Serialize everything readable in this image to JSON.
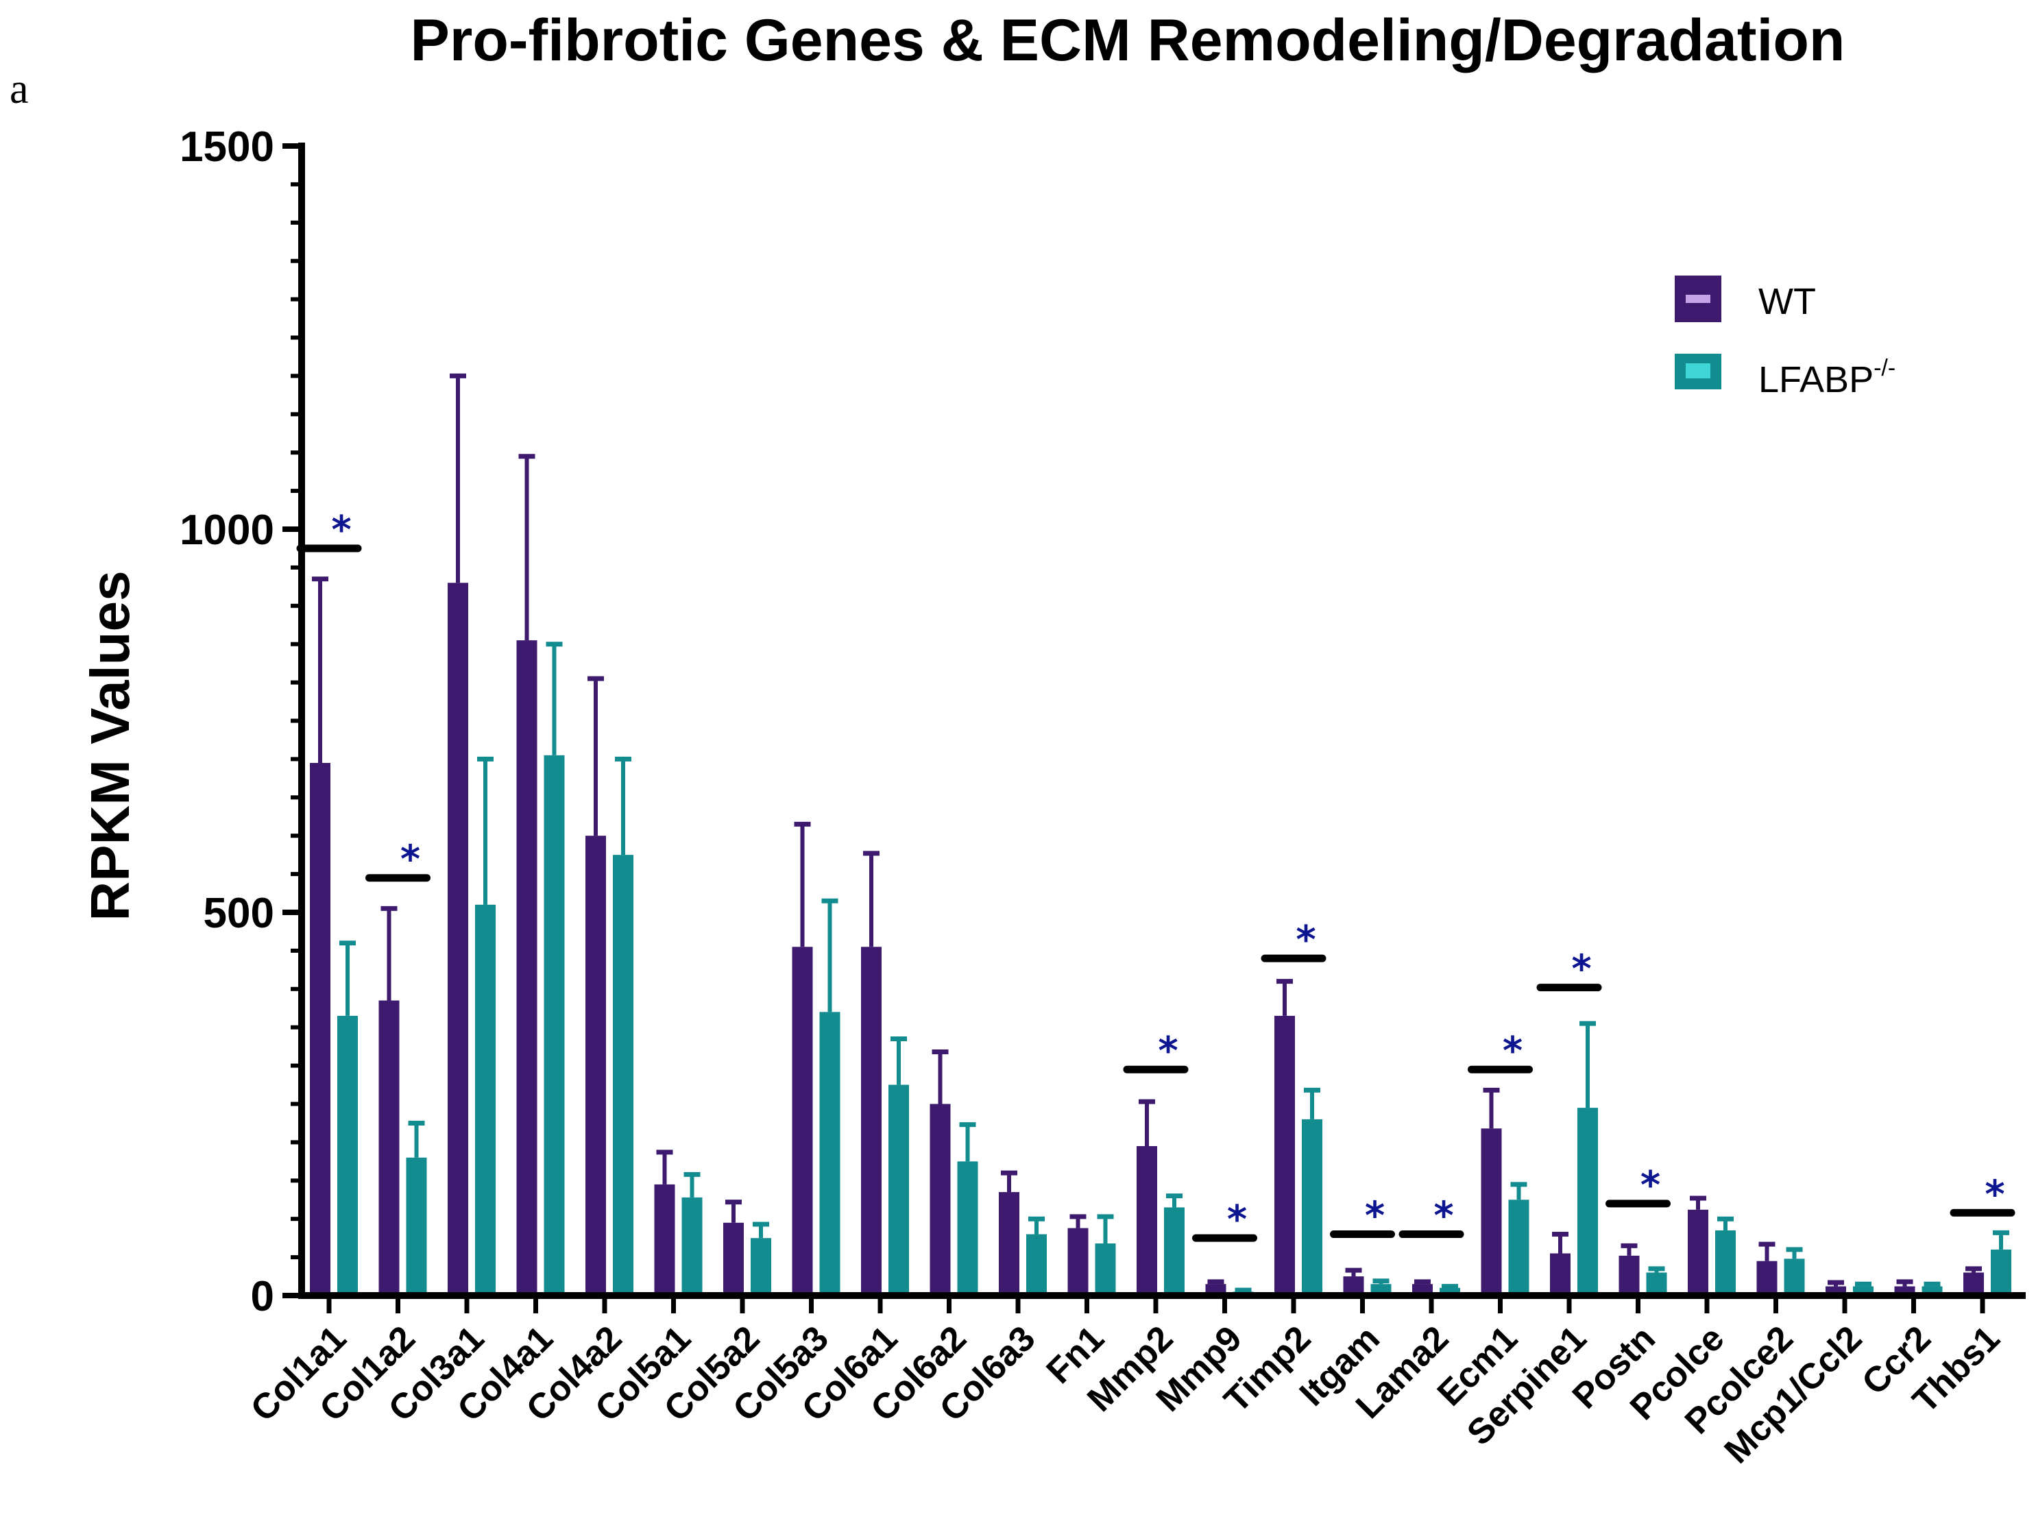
{
  "panel_label": "a",
  "colors": {
    "wt": "#3d1a6e",
    "ko": "#138c90",
    "wt_legend_inner": "#c5a3e6",
    "ko_legend_inner": "#3fd6d8",
    "significance": "#0d1591",
    "axis": "#000000"
  },
  "chart_data": {
    "type": "bar",
    "title": "Pro-fibrotic Genes & ECM Remodeling/Degradation",
    "xlabel": "",
    "ylabel": "RPKM Values",
    "ylim": [
      0,
      1500
    ],
    "yticks": [
      0,
      500,
      1000,
      1500
    ],
    "grid": false,
    "legend_position": "right",
    "categories": [
      "Col1a1",
      "Col1a2",
      "Col3a1",
      "Col4a1",
      "Col4a2",
      "Col5a1",
      "Col5a2",
      "Col5a3",
      "Col6a1",
      "Col6a2",
      "Col6a3",
      "Fn1",
      "Mmp2",
      "Mmp9",
      "Timp2",
      "Itgam",
      "Lama2",
      "Ecm1",
      "Serpine1",
      "Postn",
      "Pcolce",
      "Pcolce2",
      "Mcp1/Ccl2",
      "Ccr2",
      "Thbs1"
    ],
    "series": [
      {
        "name": "WT",
        "values": [
          695,
          385,
          930,
          855,
          600,
          145,
          95,
          455,
          455,
          250,
          135,
          88,
          195,
          15,
          365,
          25,
          15,
          218,
          55,
          52,
          112,
          45,
          12,
          12,
          30
        ],
        "errors": [
          240,
          120,
          270,
          240,
          205,
          42,
          27,
          160,
          122,
          68,
          25,
          15,
          58,
          3,
          45,
          8,
          3,
          50,
          25,
          13,
          15,
          22,
          5,
          6,
          5
        ]
      },
      {
        "name": "LFABP",
        "name_superscript": "-/-",
        "values": [
          365,
          180,
          510,
          705,
          575,
          128,
          75,
          370,
          275,
          175,
          80,
          68,
          115,
          5,
          230,
          15,
          10,
          125,
          245,
          30,
          85,
          48,
          12,
          12,
          60
        ],
        "errors": [
          95,
          45,
          190,
          145,
          125,
          30,
          18,
          145,
          60,
          48,
          20,
          35,
          15,
          2,
          38,
          4,
          2,
          20,
          110,
          5,
          15,
          12,
          3,
          3,
          22
        ]
      }
    ],
    "significance": [
      {
        "category": "Col1a1",
        "y": 975,
        "label": "*"
      },
      {
        "category": "Col1a2",
        "y": 545,
        "label": "*"
      },
      {
        "category": "Mmp2",
        "y": 295,
        "label": "*"
      },
      {
        "category": "Mmp9",
        "y": 75,
        "label": "*"
      },
      {
        "category": "Timp2",
        "y": 440,
        "label": "*"
      },
      {
        "category": "Itgam",
        "y": 80,
        "label": "*"
      },
      {
        "category": "Lama2",
        "y": 80,
        "label": "*"
      },
      {
        "category": "Ecm1",
        "y": 295,
        "label": "*"
      },
      {
        "category": "Serpine1",
        "y": 402,
        "label": "*"
      },
      {
        "category": "Postn",
        "y": 120,
        "label": "*"
      },
      {
        "category": "Thbs1",
        "y": 108,
        "label": "*"
      }
    ]
  }
}
